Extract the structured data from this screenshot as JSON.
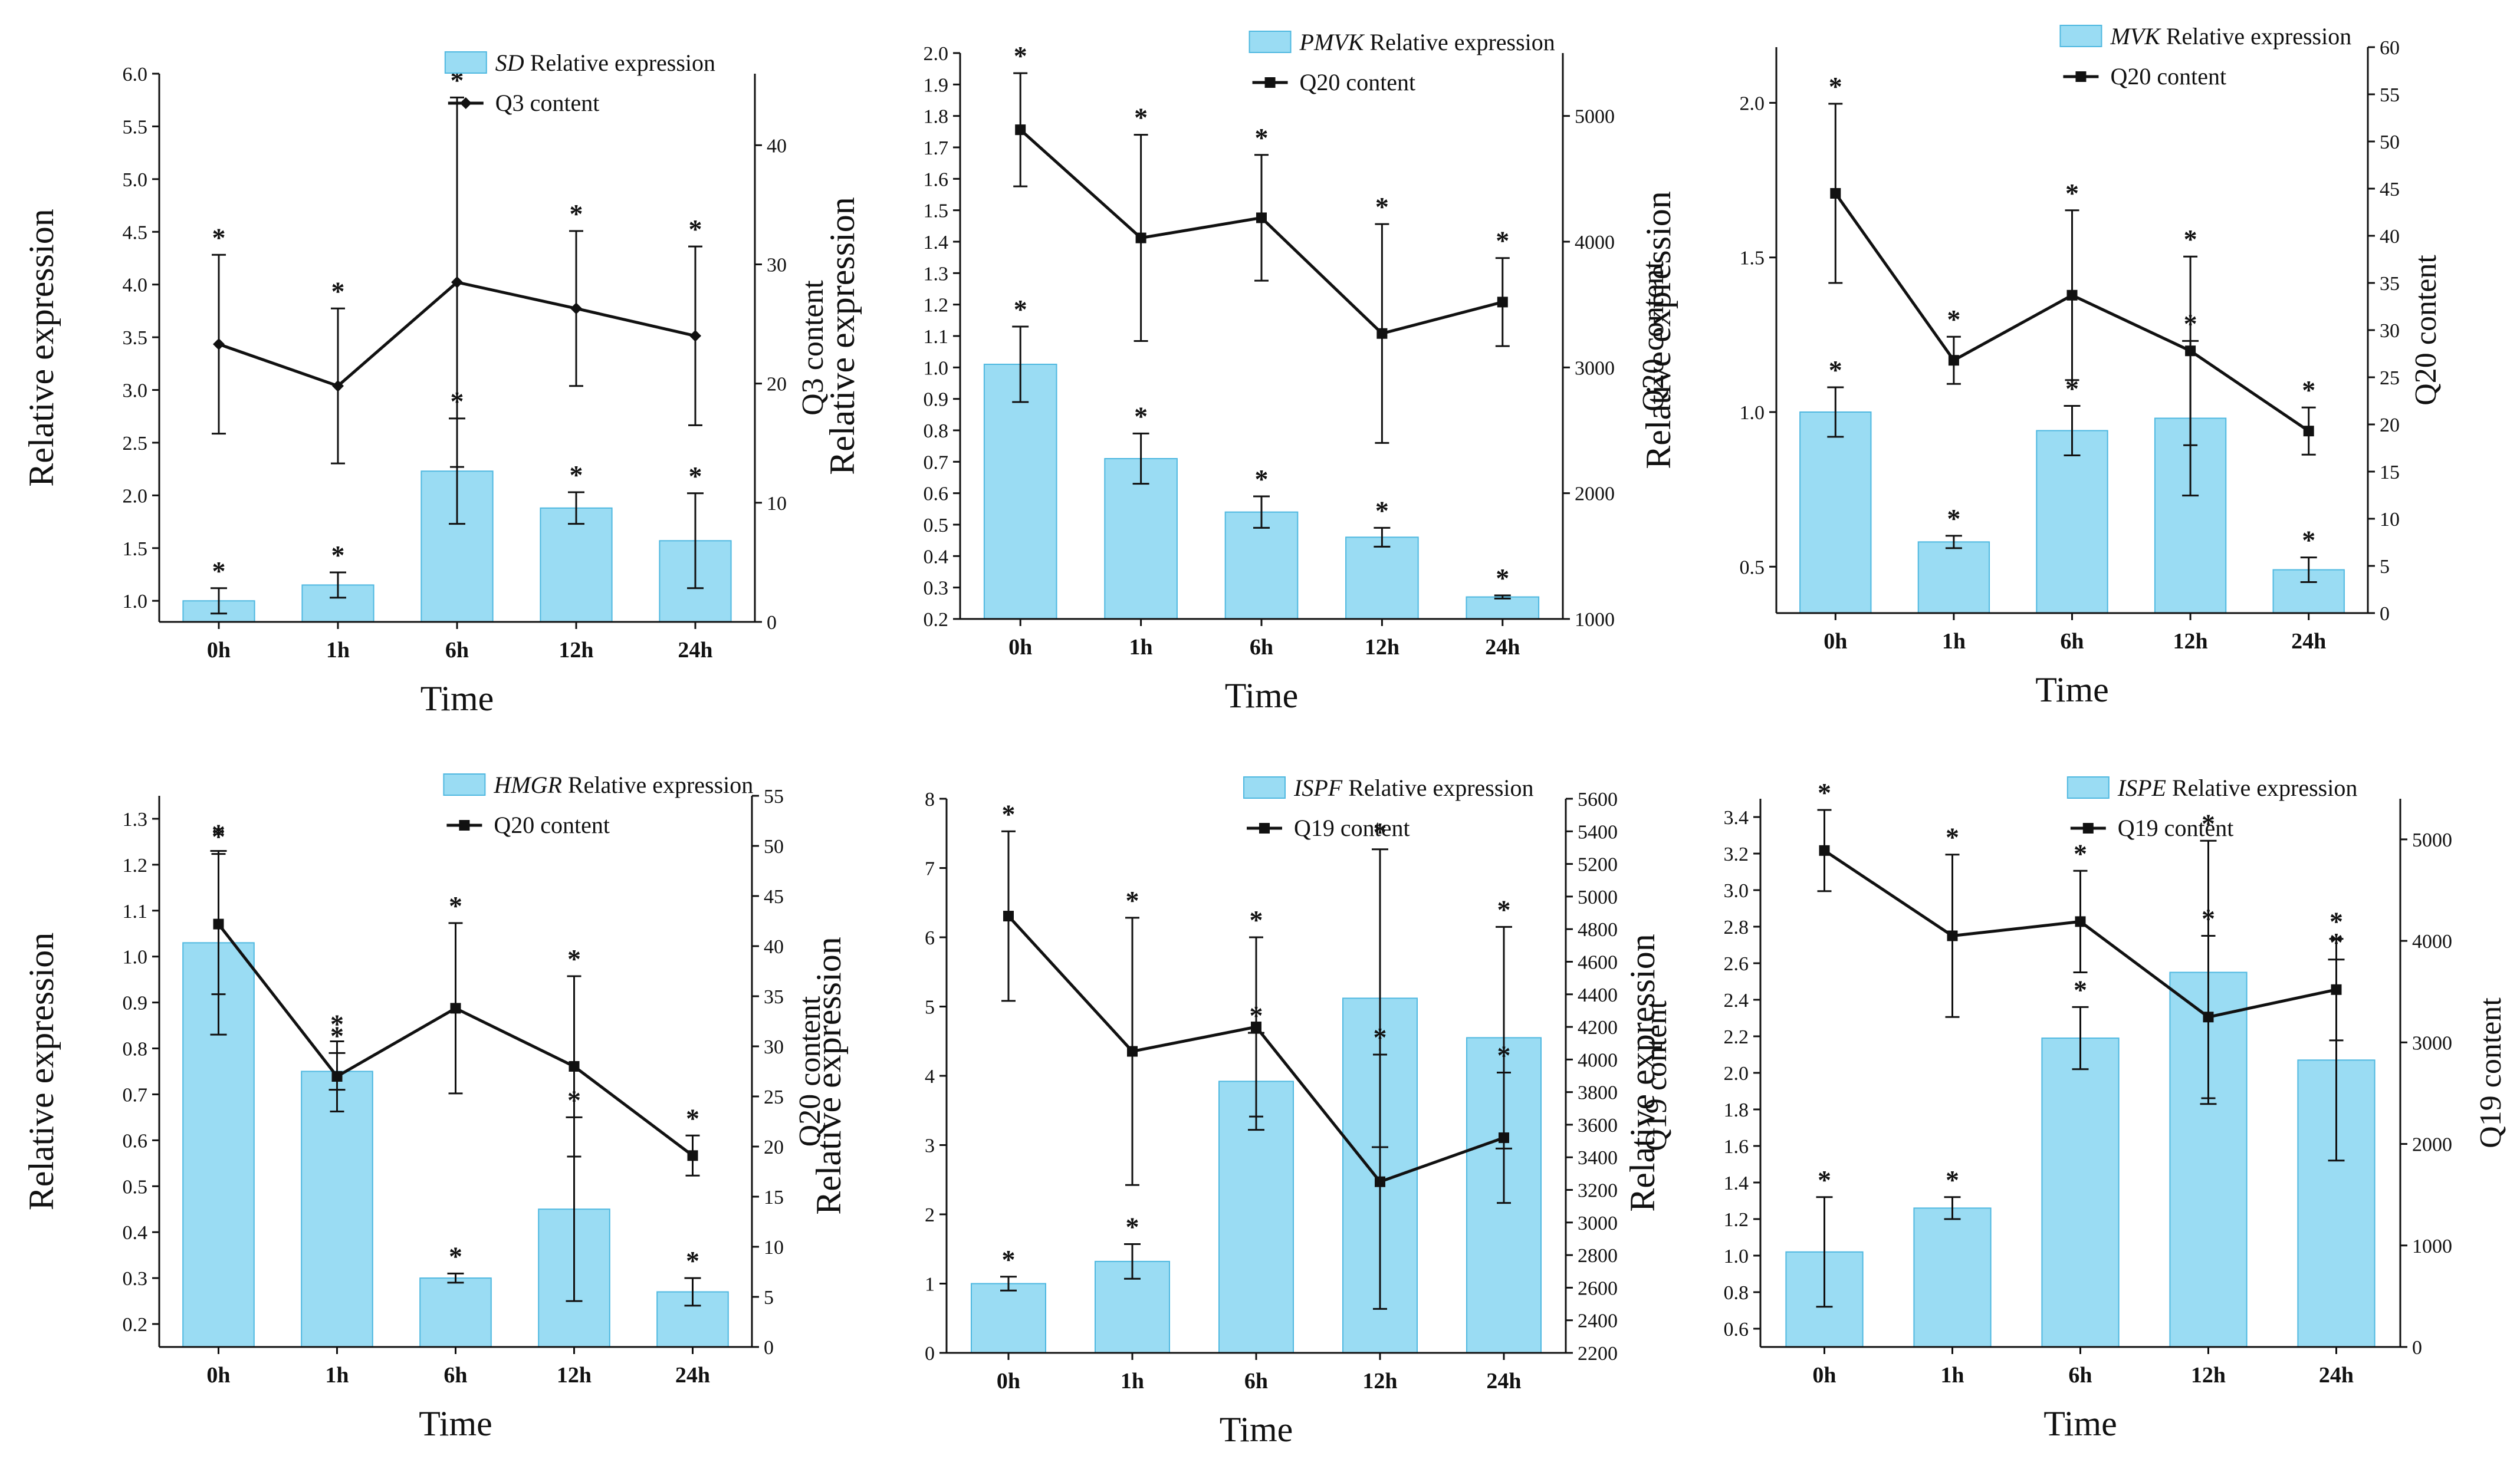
{
  "figure": {
    "bar_color": "#9adcf3",
    "bar_edge": "#4fb8e0",
    "line_color": "#111111"
  },
  "chart_data": [
    {
      "type": "bar+line",
      "gene": "SD",
      "legend_bar_suffix": "Relative expression",
      "legend_line": "Q3 content",
      "categories": [
        "0h",
        "1h",
        "6h",
        "12h",
        "24h"
      ],
      "bar_values": [
        1.0,
        1.15,
        2.23,
        1.88,
        1.57
      ],
      "bar_errors": [
        0.12,
        0.12,
        0.5,
        0.15,
        0.45
      ],
      "line_values": [
        23.3,
        19.8,
        28.5,
        26.3,
        24.0
      ],
      "line_errors": [
        7.5,
        6.5,
        15.5,
        6.5,
        7.5
      ],
      "ylim": [
        0.8,
        6.0
      ],
      "yticks": [
        "1.0",
        "1.5",
        "2.0",
        "2.5",
        "3.0",
        "3.5",
        "4.0",
        "4.5",
        "5.0",
        "5.5",
        "6.0"
      ],
      "y2lim": [
        0,
        46
      ],
      "y2ticks": [
        "0",
        "10",
        "20",
        "30",
        "40"
      ],
      "xlabel": "Time",
      "ylabel": "Relative expression",
      "y2label": "Q3 content",
      "line_marker": "diamond"
    },
    {
      "type": "bar+line",
      "gene": "PMVK",
      "legend_bar_suffix": "Relative expression",
      "legend_line": "Q20 content",
      "categories": [
        "0h",
        "1h",
        "6h",
        "12h",
        "24h"
      ],
      "bar_values": [
        1.01,
        0.71,
        0.54,
        0.46,
        0.27
      ],
      "bar_errors": [
        0.12,
        0.08,
        0.05,
        0.03,
        0.005
      ],
      "line_values": [
        4890,
        4030,
        4190,
        3270,
        3520
      ],
      "line_errors": [
        450,
        820,
        500,
        870,
        350
      ],
      "ylim": [
        0.2,
        2.0
      ],
      "yticks": [
        "0.2",
        "0.3",
        "0.4",
        "0.5",
        "0.6",
        "0.7",
        "0.8",
        "0.9",
        "1.0",
        "1.1",
        "1.2",
        "1.3",
        "1.4",
        "1.5",
        "1.6",
        "1.7",
        "1.8",
        "1.9",
        "2.0"
      ],
      "y2lim": [
        1000,
        5500
      ],
      "y2ticks": [
        "1000",
        "2000",
        "3000",
        "4000",
        "5000"
      ],
      "xlabel": "Time",
      "ylabel": "Relative expression",
      "y2label": "Q20 content",
      "line_marker": "square"
    },
    {
      "type": "bar+line",
      "gene": "MVK",
      "legend_bar_suffix": "Relative expression",
      "legend_line": "Q20 content",
      "categories": [
        "0h",
        "1h",
        "6h",
        "12h",
        "24h"
      ],
      "bar_values": [
        1.0,
        0.58,
        0.94,
        0.98,
        0.49
      ],
      "bar_errors": [
        0.08,
        0.02,
        0.08,
        0.25,
        0.04
      ],
      "line_values": [
        44.5,
        26.8,
        33.7,
        27.8,
        19.3
      ],
      "line_errors": [
        9.5,
        2.5,
        9.0,
        10.0,
        2.5
      ],
      "ylim": [
        0.35,
        2.18
      ],
      "yticks": [
        "0.5",
        "1.0",
        "1.5",
        "2.0"
      ],
      "y2lim": [
        0,
        60
      ],
      "y2ticks": [
        "0",
        "5",
        "10",
        "15",
        "20",
        "25",
        "30",
        "35",
        "40",
        "45",
        "50",
        "55",
        "60"
      ],
      "xlabel": "Time",
      "ylabel": "Relative expression",
      "y2label": "Q20 content",
      "line_marker": "square"
    },
    {
      "type": "bar+line",
      "gene": "HMGR",
      "legend_bar_suffix": "Relative expression",
      "legend_line": "Q20 content",
      "categories": [
        "0h",
        "1h",
        "6h",
        "12h",
        "24h"
      ],
      "bar_values": [
        1.03,
        0.75,
        0.3,
        0.45,
        0.27
      ],
      "bar_errors": [
        0.2,
        0.04,
        0.01,
        0.2,
        0.03
      ],
      "line_values": [
        42.2,
        27.0,
        33.8,
        28.0,
        19.1
      ],
      "line_errors": [
        7.0,
        3.5,
        8.5,
        9.0,
        2.0
      ],
      "ylim": [
        0.15,
        1.35
      ],
      "yticks": [
        "0.2",
        "0.3",
        "0.4",
        "0.5",
        "0.6",
        "0.7",
        "0.8",
        "0.9",
        "1.0",
        "1.1",
        "1.2",
        "1.3"
      ],
      "y2lim": [
        0,
        55
      ],
      "y2ticks": [
        "0",
        "5",
        "10",
        "15",
        "20",
        "25",
        "30",
        "35",
        "40",
        "45",
        "50",
        "55"
      ],
      "xlabel": "Time",
      "ylabel": "Relative expression",
      "y2label": "Q20 content",
      "line_marker": "square"
    },
    {
      "type": "bar+line",
      "gene": "ISPF",
      "legend_bar_suffix": "Relative expression",
      "legend_line": "Q19 content",
      "categories": [
        "0h",
        "1h",
        "6h",
        "12h",
        "24h"
      ],
      "bar_values": [
        1.0,
        1.32,
        3.92,
        5.12,
        4.55
      ],
      "bar_errors": [
        0.1,
        0.25,
        0.7,
        2.15,
        1.6
      ],
      "line_values": [
        4880,
        4050,
        4200,
        3250,
        3520
      ],
      "line_errors": [
        520,
        820,
        550,
        780,
        400
      ],
      "ylim": [
        0,
        8
      ],
      "yticks": [
        "0",
        "1",
        "2",
        "3",
        "4",
        "5",
        "6",
        "7",
        "8"
      ],
      "y2lim": [
        2200,
        5600
      ],
      "y2ticks": [
        "2200",
        "2400",
        "2600",
        "2800",
        "3000",
        "3200",
        "3400",
        "3600",
        "3800",
        "4000",
        "4200",
        "4400",
        "4600",
        "4800",
        "5000",
        "5200",
        "5400",
        "5600"
      ],
      "xlabel": "Time",
      "ylabel": "Relative expression",
      "y2label": "Q19 content",
      "line_marker": "square"
    },
    {
      "type": "bar+line",
      "gene": "ISPE",
      "legend_bar_suffix": "Relative expression",
      "legend_line": "Q19 content",
      "categories": [
        "0h",
        "1h",
        "6h",
        "12h",
        "24h"
      ],
      "bar_values": [
        1.02,
        1.26,
        2.19,
        2.55,
        2.07
      ],
      "bar_errors": [
        0.3,
        0.06,
        0.17,
        0.72,
        0.55
      ],
      "line_values": [
        4890,
        4050,
        4190,
        3250,
        3520
      ],
      "line_errors": [
        400,
        800,
        500,
        800,
        500
      ],
      "ylim": [
        0.5,
        3.5
      ],
      "yticks": [
        "0.6",
        "0.8",
        "1.0",
        "1.2",
        "1.4",
        "1.6",
        "1.8",
        "2.0",
        "2.2",
        "2.4",
        "2.6",
        "2.8",
        "3.0",
        "3.2",
        "3.4"
      ],
      "y2lim": [
        0,
        5400
      ],
      "y2ticks": [
        "0",
        "1000",
        "2000",
        "3000",
        "4000",
        "5000"
      ],
      "xlabel": "Time",
      "ylabel": "Relative expression",
      "y2label": "Q19 content",
      "line_marker": "square"
    }
  ],
  "significance_marker": "*"
}
